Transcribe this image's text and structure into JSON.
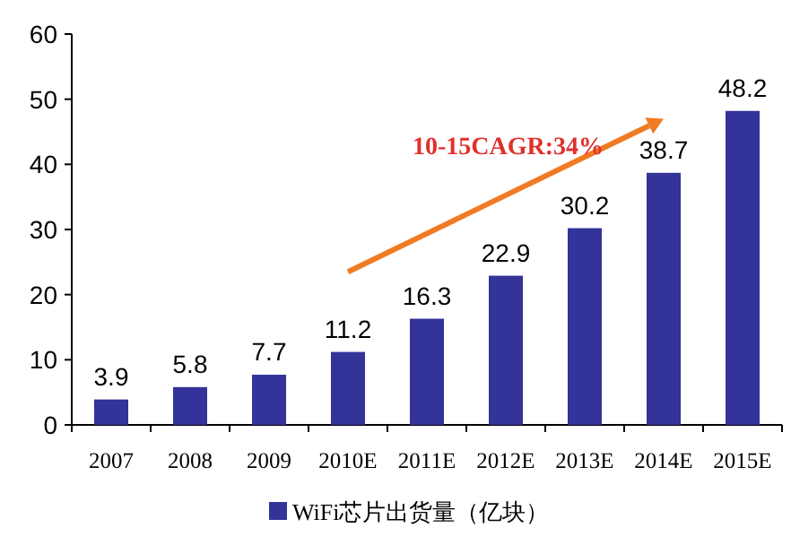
{
  "chart_data": {
    "type": "bar",
    "categories": [
      "2007",
      "2008",
      "2009",
      "2010E",
      "2011E",
      "2012E",
      "2013E",
      "2014E",
      "2015E"
    ],
    "series": [
      {
        "name": "WiFi芯片出货量（亿块）",
        "color": "#333399",
        "values": [
          3.9,
          5.8,
          7.7,
          11.2,
          16.3,
          22.9,
          30.2,
          38.7,
          48.2
        ]
      }
    ],
    "ylim": [
      0,
      60
    ],
    "yticks": [
      0,
      10,
      20,
      30,
      40,
      50,
      60
    ],
    "data_labels": true,
    "grid": false,
    "legend": "bottom",
    "annotations": [
      "10-15CAGR:34%"
    ]
  }
}
